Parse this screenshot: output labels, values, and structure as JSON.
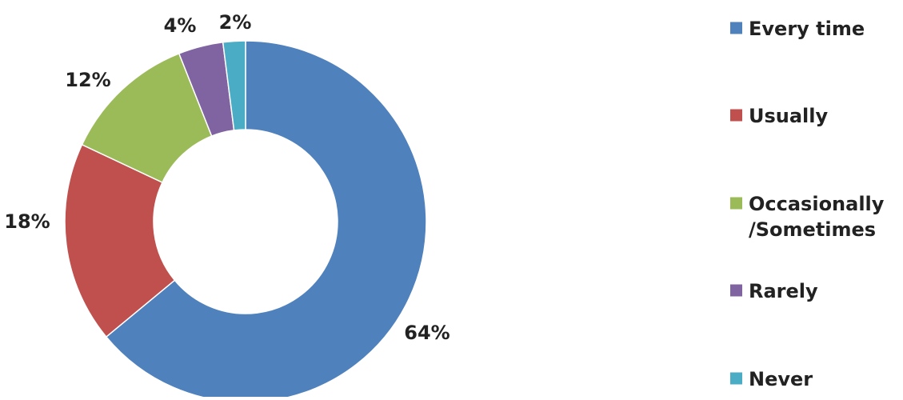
{
  "chart_data": {
    "type": "pie",
    "donut": true,
    "categories": [
      "Every time",
      "Usually",
      "Occasionally\n/Sometimes",
      "Rarely",
      "Never"
    ],
    "values": [
      64,
      18,
      12,
      4,
      2
    ],
    "value_labels": [
      "64%",
      "18%",
      "12%",
      "4%",
      "2%"
    ],
    "colors": [
      "#4F81BD",
      "#C0504D",
      "#9BBB59",
      "#8064A2",
      "#4BACC6"
    ],
    "legend": {
      "placement": "right",
      "entries": [
        [
          "Every time"
        ],
        [
          "Usually"
        ],
        [
          "Occasionally",
          "/Sometimes"
        ],
        [
          "Rarely"
        ],
        [
          "Never"
        ]
      ]
    },
    "title": "",
    "start_angle": "top",
    "direction": "clockwise"
  }
}
